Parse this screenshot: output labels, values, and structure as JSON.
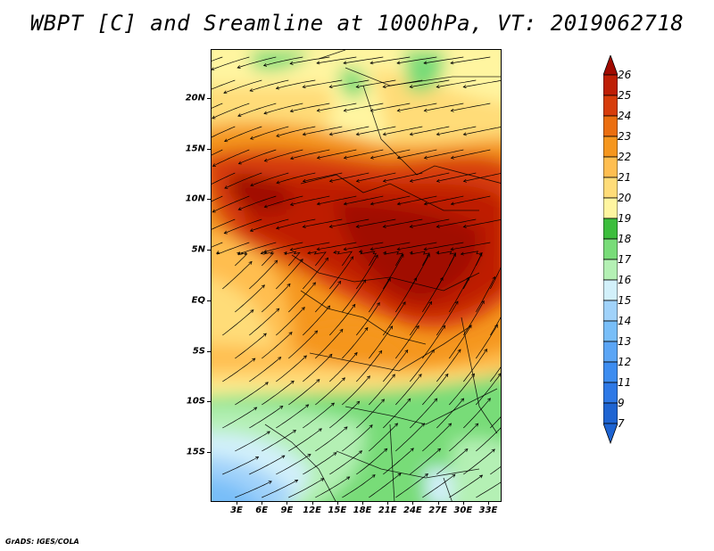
{
  "title": "WBPT [C] and Sreamline at 1000hPa, VT: 2019062718",
  "footer": "GrADS: IGES/COLA",
  "map": {
    "lat_labels": [
      "20N",
      "15N",
      "10N",
      "5N",
      "EQ",
      "5S",
      "10S",
      "15S"
    ],
    "lon_labels": [
      "3E",
      "6E",
      "9E",
      "12E",
      "15E",
      "18E",
      "21E",
      "24E",
      "27E",
      "30E",
      "33E"
    ]
  },
  "colorbar": {
    "labels": [
      "26",
      "25",
      "24",
      "23",
      "22",
      "21",
      "20",
      "19",
      "18",
      "17",
      "16",
      "15",
      "14",
      "13",
      "12",
      "11",
      "9",
      "7"
    ],
    "colors": {
      "7": "#1e64d2",
      "9": "#2d78e6",
      "11": "#3c8cf0",
      "12": "#5aa5f5",
      "13": "#78bef8",
      "14": "#a0d2fa",
      "15": "#d2f0fa",
      "16": "#b4f0b4",
      "17": "#78dc78",
      "18": "#3cbe3c",
      "19": "#fff5a0",
      "20": "#ffdc78",
      "21": "#ffbe50",
      "22": "#f5961e",
      "23": "#eb6e0f",
      "24": "#d73c0a",
      "25": "#be1e05",
      "26": "#a00a00"
    }
  }
}
